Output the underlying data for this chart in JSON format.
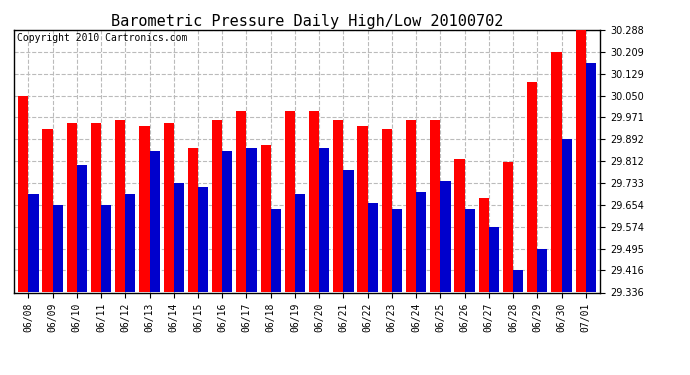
{
  "title": "Barometric Pressure Daily High/Low 20100702",
  "copyright": "Copyright 2010 Cartronics.com",
  "dates": [
    "06/08",
    "06/09",
    "06/10",
    "06/11",
    "06/12",
    "06/13",
    "06/14",
    "06/15",
    "06/16",
    "06/17",
    "06/18",
    "06/19",
    "06/20",
    "06/21",
    "06/22",
    "06/23",
    "06/24",
    "06/25",
    "06/26",
    "06/27",
    "06/28",
    "06/29",
    "06/30",
    "07/01"
  ],
  "highs": [
    30.05,
    29.93,
    29.95,
    29.95,
    29.96,
    29.94,
    29.95,
    29.86,
    29.96,
    29.995,
    29.87,
    29.995,
    29.995,
    29.96,
    29.94,
    29.93,
    29.96,
    29.96,
    29.82,
    29.68,
    29.81,
    30.1,
    30.209,
    30.288
  ],
  "lows": [
    29.692,
    29.654,
    29.8,
    29.654,
    29.692,
    29.85,
    29.733,
    29.72,
    29.85,
    29.86,
    29.64,
    29.692,
    29.86,
    29.78,
    29.66,
    29.64,
    29.7,
    29.74,
    29.64,
    29.574,
    29.416,
    29.495,
    29.892,
    30.17
  ],
  "ymin": 29.336,
  "ymax": 30.288,
  "yticks": [
    29.336,
    29.416,
    29.495,
    29.574,
    29.654,
    29.733,
    29.812,
    29.892,
    29.971,
    30.05,
    30.129,
    30.209,
    30.288
  ],
  "bar_width": 0.42,
  "high_color": "#ff0000",
  "low_color": "#0000cc",
  "bg_color": "#ffffff",
  "plot_bg_color": "#ffffff",
  "grid_color": "#bbbbbb",
  "title_fontsize": 11,
  "tick_fontsize": 7,
  "copyright_fontsize": 7
}
